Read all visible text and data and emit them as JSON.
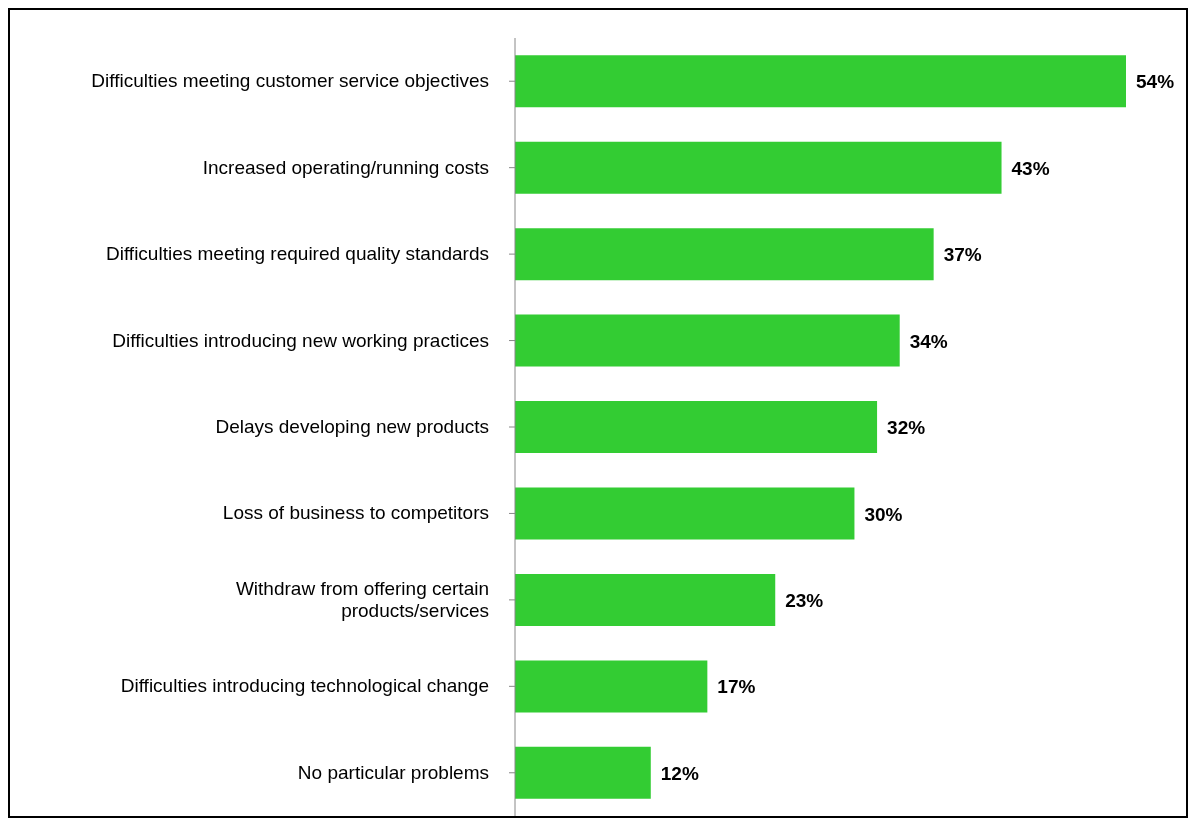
{
  "chart_data": {
    "type": "bar",
    "orientation": "horizontal",
    "categories": [
      "Difficulties meeting customer service objectives",
      "Increased operating/running costs",
      "Difficulties meeting required quality standards",
      "Difficulties introducing new working practices",
      "Delays developing new products",
      "Loss of business to competitors",
      "Withdraw from offering certain\nproducts/services",
      "Difficulties introducing technological change",
      "No particular problems"
    ],
    "values": [
      54,
      43,
      37,
      34,
      32,
      30,
      23,
      17,
      12
    ],
    "value_labels": [
      "54%",
      "43%",
      "37%",
      "34%",
      "32%",
      "30%",
      "23%",
      "17%",
      "12%"
    ],
    "color": "#33cc33"
  }
}
